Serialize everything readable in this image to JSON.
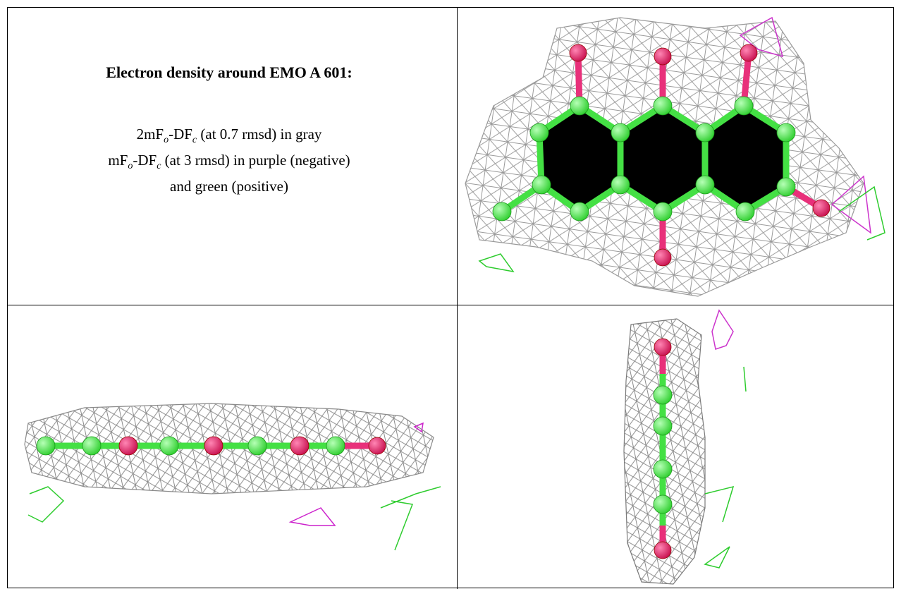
{
  "figure": {
    "title": "Electron density around EMO A 601:",
    "legend_lines": [
      [
        "2mF",
        "o",
        "-DF",
        "c",
        " (at 0.7 rmsd) in gray"
      ],
      [
        "mF",
        "o",
        "-DF",
        "c",
        " (at 3 rmsd) in purple (negative)"
      ],
      [
        "and green (positive)"
      ]
    ]
  }
}
